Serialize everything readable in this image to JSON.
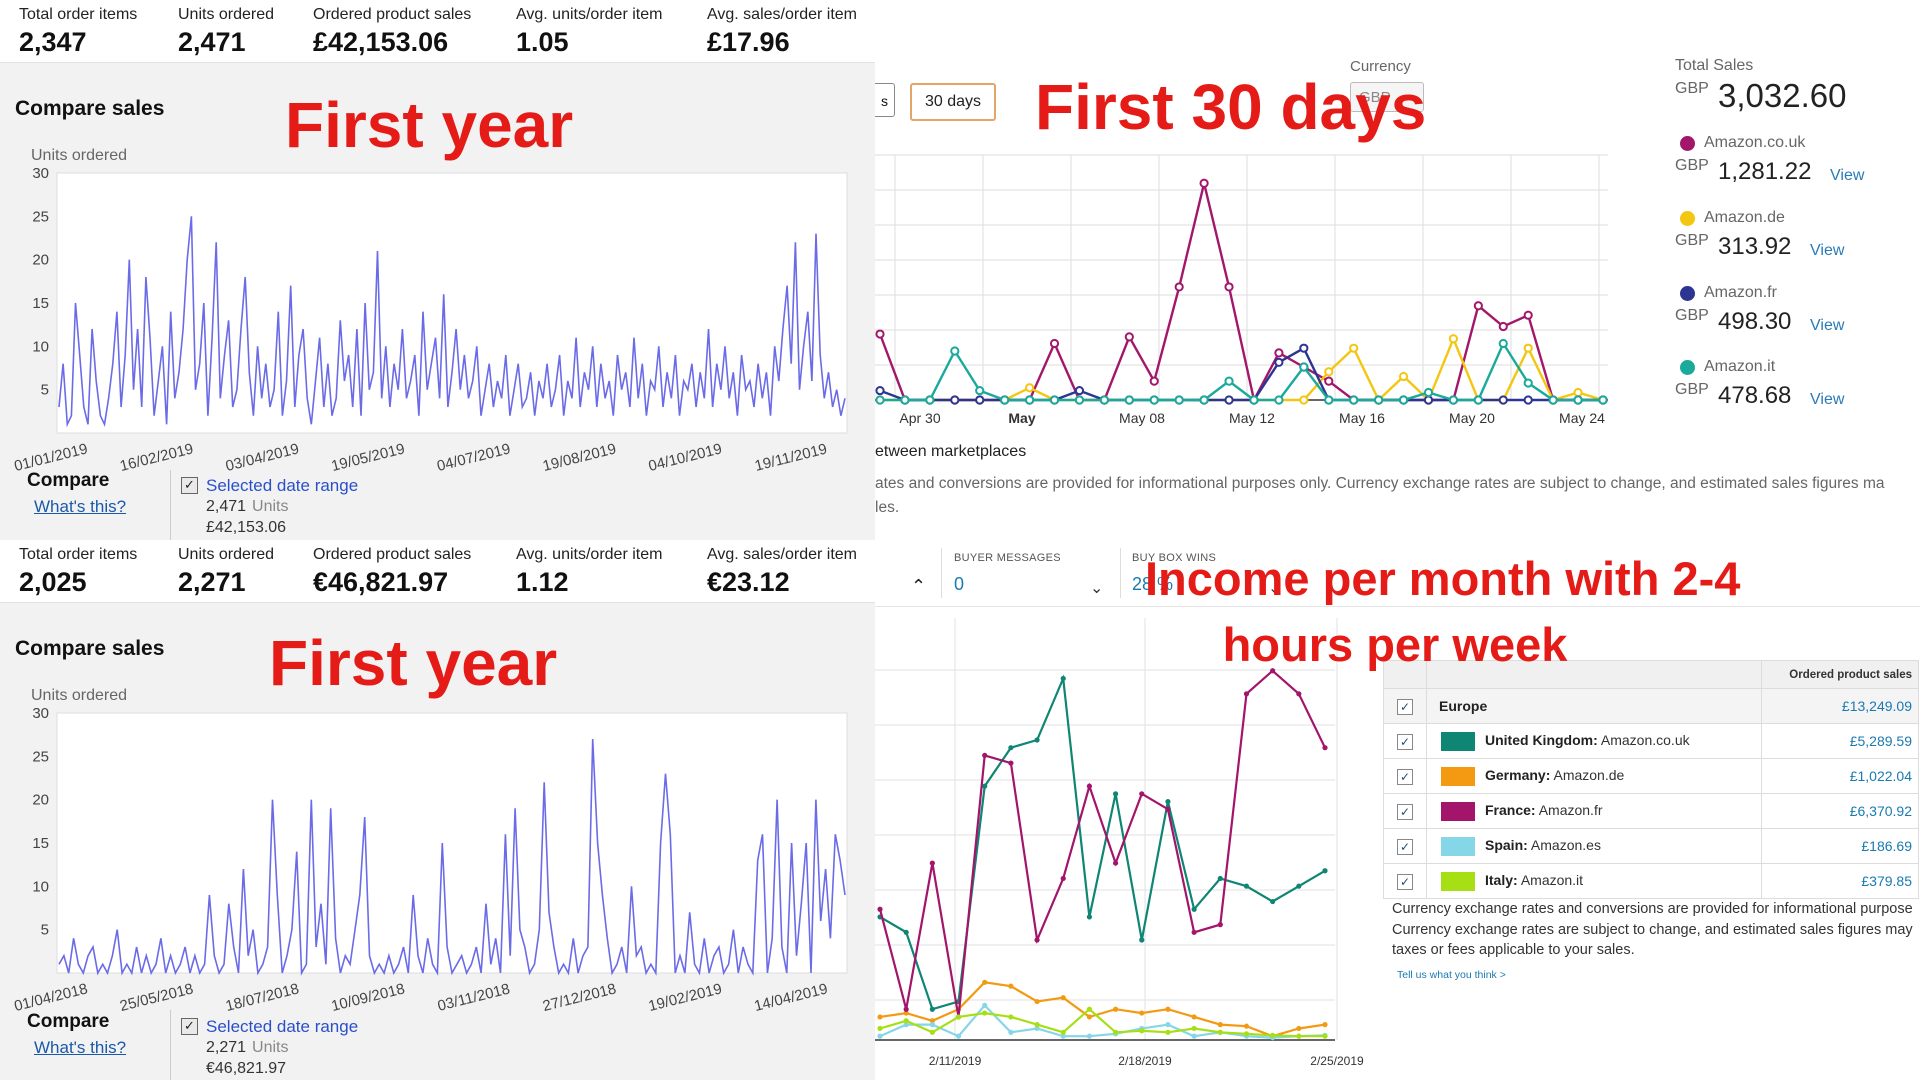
{
  "q1": {
    "stats": [
      {
        "label": "Total order items",
        "value": "2,347"
      },
      {
        "label": "Units ordered",
        "value": "2,471"
      },
      {
        "label": "Ordered product sales",
        "value": "£42,153.06"
      },
      {
        "label": "Avg. units/order item",
        "value": "1.05"
      },
      {
        "label": "Avg. sales/order item",
        "value": "£17.96"
      }
    ],
    "panel_title": "Compare sales",
    "overlay": "First year",
    "compare_label": "Compare",
    "whats_this": "What's this?",
    "range_label": "Selected date range",
    "range_units_value": "2,471",
    "range_units_word": "Units",
    "range_money": "£42,153.06"
  },
  "q2": {
    "btn_prev": "s",
    "btn_30": "30 days",
    "overlay": "First 30 days",
    "currency_label": "Currency",
    "currency_value": "GBP",
    "total_label": "Total Sales",
    "total_currency": "GBP",
    "total_value": "3,032.60",
    "marketplaces": [
      {
        "name": "Amazon.co.uk",
        "currency": "GBP",
        "value": "1,281.22",
        "view": "View",
        "color": "#a3176b"
      },
      {
        "name": "Amazon.de",
        "currency": "GBP",
        "value": "313.92",
        "view": "View",
        "color": "#f3c612"
      },
      {
        "name": "Amazon.fr",
        "currency": "GBP",
        "value": "498.30",
        "view": "View",
        "color": "#2d3592"
      },
      {
        "name": "Amazon.it",
        "currency": "GBP",
        "value": "478.68",
        "view": "View",
        "color": "#1aa99b"
      }
    ],
    "between": "etween marketplaces",
    "disclaimer": "ates and conversions are provided for informational purposes only. Currency exchange rates are subject to change, and estimated sales figures ma",
    "disclaimer2": "les."
  },
  "q3": {
    "stats": [
      {
        "label": "Total order items",
        "value": "2,025"
      },
      {
        "label": "Units ordered",
        "value": "2,271"
      },
      {
        "label": "Ordered product sales",
        "value": "€46,821.97"
      },
      {
        "label": "Avg. units/order item",
        "value": "1.12"
      },
      {
        "label": "Avg. sales/order item",
        "value": "€23.12"
      }
    ],
    "panel_title": "Compare sales",
    "overlay": "First year",
    "compare_label": "Compare",
    "whats_this": "What's this?",
    "range_label": "Selected date range",
    "range_units_value": "2,271",
    "range_units_word": "Units",
    "range_money": "€46,821.97"
  },
  "q4": {
    "caret": "^",
    "buyer_messages_label": "BUYER MESSAGES",
    "buyer_messages_value": "0",
    "buy_box_label": "BUY BOX WINS",
    "buy_box_value": "28 %",
    "overlay_line1": "Income per month with 2-4",
    "overlay_line2": "hours per week",
    "table_header": "Ordered product sales",
    "rows": [
      {
        "name": "Europe",
        "site": "",
        "value": "£13,249.09",
        "color": ""
      },
      {
        "name": "United Kingdom:",
        "site": "Amazon.co.uk",
        "value": "£5,289.59",
        "color": "#0f8574"
      },
      {
        "name": "Germany:",
        "site": "Amazon.de",
        "value": "£1,022.04",
        "color": "#f39a12"
      },
      {
        "name": "France:",
        "site": "Amazon.fr",
        "value": "£6,370.92",
        "color": "#a3146b"
      },
      {
        "name": "Spain:",
        "site": "Amazon.es",
        "value": "£186.69",
        "color": "#85d6e6"
      },
      {
        "name": "Italy:",
        "site": "Amazon.it",
        "value": "£379.85",
        "color": "#a6e014"
      }
    ],
    "disclaimer": "Currency exchange rates and conversions are provided for informational purpose Currency exchange rates are subject to change, and estimated sales figures may taxes or fees applicable to your sales.",
    "tell_us": "Tell us what you think >"
  },
  "chart_data": [
    {
      "type": "line",
      "title": "",
      "ylabel": "Units ordered",
      "ylim": [
        0,
        30
      ],
      "yticks": [
        5,
        10,
        15,
        20,
        25,
        30
      ],
      "x_tick_labels": [
        "01/01/2019",
        "16/02/2019",
        "03/04/2019",
        "19/05/2019",
        "04/07/2019",
        "19/08/2019",
        "04/10/2019",
        "19/11/2019"
      ],
      "series": [
        {
          "values": [
            3,
            8,
            1,
            2,
            15,
            9,
            3,
            1,
            12,
            6,
            2,
            1,
            4,
            8,
            14,
            3,
            9,
            20,
            5,
            12,
            3,
            18,
            11,
            2,
            6,
            10,
            1,
            14,
            4,
            7,
            12,
            20,
            25,
            5,
            8,
            15,
            2,
            11,
            22,
            4,
            9,
            13,
            3,
            5,
            12,
            18,
            7,
            2,
            10,
            4,
            8,
            3,
            5,
            14,
            2,
            6,
            17,
            3,
            9,
            12,
            4,
            1,
            6,
            11,
            3,
            8,
            2,
            4,
            13,
            6,
            9,
            3,
            12,
            2,
            15,
            5,
            7,
            21,
            4,
            10,
            3,
            8,
            5,
            12,
            4,
            6,
            9,
            2,
            14,
            5,
            8,
            11,
            4,
            16,
            3,
            7,
            12,
            5,
            9,
            4,
            6,
            10,
            2,
            5,
            8,
            3,
            6,
            4,
            9,
            2,
            5,
            8,
            3,
            4,
            7,
            2,
            6,
            4,
            8,
            3,
            5,
            9,
            2,
            6,
            4,
            11,
            3,
            7,
            5,
            10,
            3,
            8,
            4,
            6,
            2,
            9,
            5,
            7,
            3,
            11,
            4,
            8,
            2,
            6,
            5,
            10,
            3,
            7,
            4,
            9,
            2,
            6,
            5,
            8,
            3,
            7,
            4,
            12,
            3,
            8,
            5,
            10,
            4,
            7,
            2,
            9,
            5,
            6,
            3,
            8,
            4,
            7,
            2,
            10,
            6,
            12,
            17,
            8,
            22,
            5,
            10,
            14,
            6,
            23,
            9,
            4,
            7,
            3,
            5,
            2,
            4
          ]
        }
      ]
    },
    {
      "type": "line",
      "title": "",
      "x_tick_labels": [
        "Apr 30",
        "May",
        "May 08",
        "May 12",
        "May 16",
        "May 20",
        "May 24"
      ],
      "series": [
        {
          "name": "Amazon.co.uk",
          "values": [
            70,
            0,
            0,
            0,
            0,
            0,
            0,
            60,
            0,
            0,
            67,
            20,
            120,
            230,
            120,
            0,
            50,
            35,
            20,
            0,
            0,
            0,
            0,
            0,
            100,
            78,
            90,
            0,
            0,
            0
          ]
        },
        {
          "name": "Amazon.de",
          "values": [
            0,
            0,
            0,
            0,
            0,
            0,
            13,
            0,
            0,
            0,
            0,
            0,
            0,
            0,
            0,
            0,
            0,
            0,
            30,
            55,
            0,
            25,
            0,
            65,
            0,
            0,
            55,
            0,
            8,
            0
          ]
        },
        {
          "name": "Amazon.fr",
          "values": [
            10,
            0,
            0,
            0,
            0,
            0,
            0,
            0,
            10,
            0,
            0,
            0,
            0,
            0,
            0,
            0,
            40,
            55,
            0,
            0,
            0,
            0,
            0,
            0,
            0,
            0,
            0,
            0,
            0,
            0
          ]
        },
        {
          "name": "Amazon.it",
          "values": [
            0,
            0,
            0,
            52,
            10,
            0,
            0,
            0,
            0,
            0,
            0,
            0,
            0,
            0,
            20,
            0,
            0,
            35,
            0,
            0,
            0,
            0,
            8,
            0,
            0,
            60,
            18,
            0,
            0,
            0
          ]
        }
      ]
    },
    {
      "type": "line",
      "title": "",
      "ylabel": "Units ordered",
      "ylim": [
        0,
        30
      ],
      "yticks": [
        5,
        10,
        15,
        20,
        25,
        30
      ],
      "x_tick_labels": [
        "01/04/2018",
        "25/05/2018",
        "18/07/2018",
        "10/09/2018",
        "03/11/2018",
        "27/12/2018",
        "19/02/2019",
        "14/04/2019"
      ],
      "series": [
        {
          "values": [
            1,
            2,
            0,
            4,
            1,
            0,
            2,
            3,
            0,
            1,
            0,
            2,
            5,
            0,
            1,
            0,
            3,
            0,
            2,
            0,
            1,
            4,
            0,
            2,
            0,
            1,
            3,
            0,
            2,
            0,
            1,
            9,
            2,
            0,
            1,
            8,
            3,
            0,
            12,
            2,
            5,
            0,
            1,
            3,
            20,
            9,
            0,
            2,
            5,
            14,
            0,
            1,
            20,
            3,
            8,
            1,
            19,
            4,
            0,
            2,
            1,
            5,
            9,
            18,
            2,
            0,
            1,
            0,
            2,
            0,
            1,
            3,
            0,
            9,
            2,
            0,
            4,
            1,
            0,
            15,
            3,
            0,
            1,
            2,
            0,
            1,
            3,
            0,
            8,
            1,
            4,
            0,
            16,
            2,
            19,
            5,
            3,
            0,
            1,
            5,
            22,
            7,
            3,
            0,
            1,
            0,
            4,
            0,
            2,
            3,
            27,
            15,
            9,
            4,
            0,
            1,
            3,
            0,
            10,
            2,
            3,
            0,
            1,
            0,
            15,
            23,
            16,
            0,
            2,
            0,
            7,
            1,
            0,
            4,
            0,
            2,
            3,
            0,
            1,
            5,
            0,
            3,
            1,
            0,
            13,
            16,
            0,
            4,
            20,
            3,
            0,
            15,
            2,
            8,
            15,
            0,
            20,
            6,
            12,
            4,
            16,
            13,
            9
          ]
        }
      ]
    },
    {
      "type": "line",
      "title": "",
      "x_tick_labels": [
        "2/11/2019",
        "2/18/2019",
        "2/25/2019"
      ],
      "series": [
        {
          "name": "United Kingdom: Amazon.co.uk",
          "values": [
            160,
            140,
            40,
            50,
            330,
            380,
            390,
            470,
            160,
            320,
            130,
            310,
            170,
            210,
            200,
            180,
            200,
            220
          ]
        },
        {
          "name": "Germany: Amazon.de",
          "values": [
            30,
            35,
            25,
            40,
            75,
            70,
            50,
            55,
            30,
            40,
            35,
            40,
            30,
            20,
            18,
            5,
            15,
            20
          ]
        },
        {
          "name": "France: Amazon.fr",
          "values": [
            170,
            40,
            230,
            30,
            370,
            360,
            130,
            210,
            330,
            230,
            320,
            300,
            140,
            150,
            450,
            480,
            450,
            380
          ]
        },
        {
          "name": "Spain: Amazon.es",
          "values": [
            5,
            20,
            20,
            5,
            45,
            10,
            15,
            5,
            5,
            8,
            15,
            20,
            5,
            10,
            5,
            3,
            5,
            6
          ]
        },
        {
          "name": "Italy: Amazon.it",
          "values": [
            15,
            25,
            10,
            30,
            35,
            30,
            20,
            10,
            40,
            10,
            12,
            10,
            15,
            10,
            8,
            6,
            5,
            5
          ]
        }
      ]
    }
  ]
}
